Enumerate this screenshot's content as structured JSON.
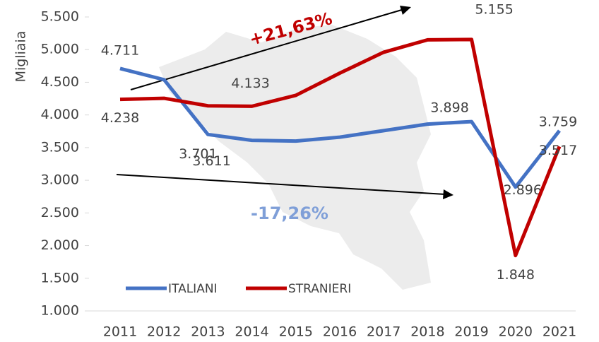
{
  "chart_data": {
    "type": "line",
    "y_axis_label": "Migliaia",
    "categories": [
      "2011",
      "2012",
      "2013",
      "2014",
      "2015",
      "2016",
      "2017",
      "2018",
      "2019",
      "2020",
      "2021"
    ],
    "series": [
      {
        "name": "ITALIANI",
        "color": "#4472c4",
        "values": [
          4711,
          4540,
          3701,
          3611,
          3600,
          3660,
          3760,
          3860,
          3898,
          2896,
          3759
        ],
        "value_labels": [
          "4.711",
          null,
          "3.701",
          "3.611",
          null,
          null,
          null,
          null,
          "3.898",
          "2.896",
          "3.759"
        ]
      },
      {
        "name": "STRANIERI",
        "color": "#c00000",
        "values": [
          4238,
          4255,
          4140,
          4133,
          4300,
          4640,
          4960,
          5150,
          5155,
          1848,
          3517
        ],
        "value_labels": [
          "4.238",
          null,
          null,
          "4.133",
          null,
          null,
          null,
          null,
          "5.155",
          "1.848",
          "3.517"
        ]
      }
    ],
    "ylim": [
      1000,
      5500
    ],
    "yticks": [
      {
        "value": 1000,
        "label": "1.000"
      },
      {
        "value": 1500,
        "label": "1.500"
      },
      {
        "value": 2000,
        "label": "2.000"
      },
      {
        "value": 2500,
        "label": "2.500"
      },
      {
        "value": 3000,
        "label": "3.000"
      },
      {
        "value": 3500,
        "label": "3.500"
      },
      {
        "value": 4000,
        "label": "4.000"
      },
      {
        "value": 4500,
        "label": "4.500"
      },
      {
        "value": 5000,
        "label": "5.000"
      },
      {
        "value": 5500,
        "label": "5.500"
      }
    ],
    "annotations": [
      "+21,63%",
      "-17,26%"
    ],
    "legend": "bottom-left"
  }
}
